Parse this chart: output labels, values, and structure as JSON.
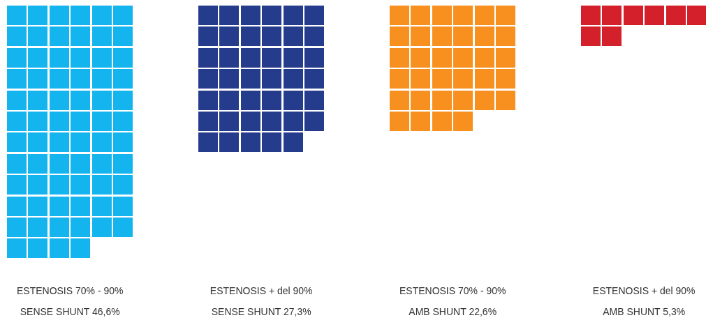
{
  "chart_data": {
    "type": "other",
    "categories": [
      "ESTENOSIS 70% - 90%",
      "ESTENOSIS + del 90%",
      "ESTENOSIS 70% - 90%",
      "ESTENOSIS + del 90%"
    ],
    "values": [
      46.6,
      27.3,
      22.6,
      5.3
    ],
    "value_labels": [
      "SENSE SHUNT 46,6%",
      "SENSE SHUNT 27,3%",
      "AMB SHUNT 22,6%",
      "AMB SHUNT 5,3%"
    ],
    "colors": [
      "#14b4ee",
      "#253c8c",
      "#f7901e",
      "#d3202a"
    ]
  }
}
